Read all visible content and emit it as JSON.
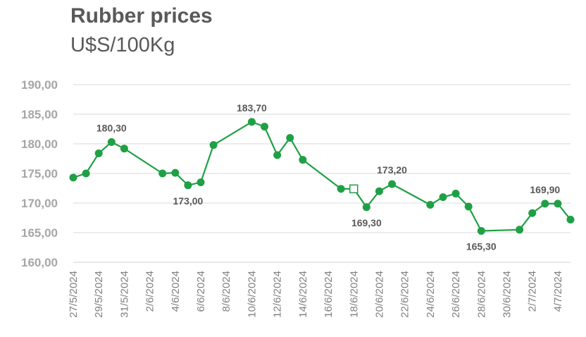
{
  "title": "Rubber prices",
  "subtitle": "U$S/100Kg",
  "colors": {
    "series": "#1fa045",
    "grid": "#d9d9d9",
    "tick_text": "#a6a6a6"
  },
  "chart_data": {
    "type": "line",
    "xlabel": "",
    "ylabel": "",
    "ylim": [
      160,
      190
    ],
    "yticks": [
      "160,00",
      "165,00",
      "170,00",
      "175,00",
      "180,00",
      "185,00",
      "190,00"
    ],
    "xtick_labels": [
      "27/5/2024",
      "29/5/2024",
      "31/5/2024",
      "2/6/2024",
      "4/6/2024",
      "6/6/2024",
      "8/6/2024",
      "10/6/2024",
      "12/6/2024",
      "14/6/2024",
      "16/6/2024",
      "18/6/2024",
      "20/6/2024",
      "22/6/2024",
      "24/6/2024",
      "26/6/2024",
      "28/6/2024",
      "30/6/2024",
      "2/7/2024",
      "4/7/2024"
    ],
    "x_range": [
      "2024-05-27",
      "2024-07-05"
    ],
    "grid": "horizontal",
    "series": [
      {
        "x": [
          "2024-05-27",
          "2024-05-28",
          "2024-05-29",
          "2024-05-30",
          "2024-05-31",
          "2024-06-03",
          "2024-06-04",
          "2024-06-05",
          "2024-06-06",
          "2024-06-07",
          "2024-06-10",
          "2024-06-11",
          "2024-06-12",
          "2024-06-13",
          "2024-06-14",
          "2024-06-17",
          "2024-06-18",
          "2024-06-19",
          "2024-06-20",
          "2024-06-21",
          "2024-06-24",
          "2024-06-25",
          "2024-06-26",
          "2024-06-27",
          "2024-06-28",
          "2024-07-01",
          "2024-07-02",
          "2024-07-03",
          "2024-07-04",
          "2024-07-05"
        ],
        "values": [
          174.3,
          175.0,
          178.4,
          180.3,
          179.2,
          175.0,
          175.1,
          173.0,
          173.5,
          179.8,
          183.7,
          182.9,
          178.1,
          181.0,
          177.3,
          172.4,
          172.4,
          169.3,
          172.0,
          173.2,
          169.7,
          171.0,
          171.6,
          169.4,
          165.3,
          165.5,
          168.3,
          169.9,
          169.9,
          167.2
        ],
        "hollow_point": "2024-06-18"
      }
    ],
    "data_labels": [
      {
        "x": "2024-05-30",
        "value": 180.3,
        "text": "180,30",
        "pos": "above"
      },
      {
        "x": "2024-06-05",
        "value": 173.0,
        "text": "173,00",
        "pos": "below"
      },
      {
        "x": "2024-06-10",
        "value": 183.7,
        "text": "183,70",
        "pos": "above"
      },
      {
        "x": "2024-06-19",
        "value": 169.3,
        "text": "169,30",
        "pos": "below"
      },
      {
        "x": "2024-06-21",
        "value": 173.2,
        "text": "173,20",
        "pos": "above"
      },
      {
        "x": "2024-06-28",
        "value": 165.3,
        "text": "165,30",
        "pos": "below"
      },
      {
        "x": "2024-07-03",
        "value": 169.9,
        "text": "169,90",
        "pos": "above"
      }
    ]
  }
}
